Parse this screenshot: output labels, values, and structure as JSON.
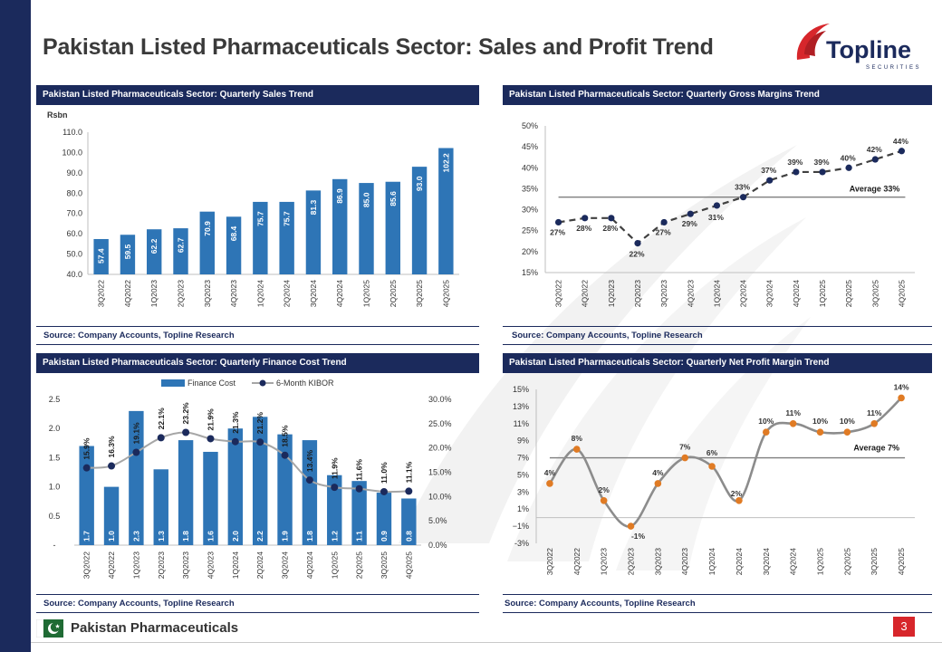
{
  "page": {
    "title": "Pakistan Listed Pharmaceuticals Sector: Sales and Profit Trend",
    "logo": {
      "name": "Topline",
      "tagline": "SECURITIES"
    },
    "footer_label": "Pakistan Pharmaceuticals",
    "page_number": "3"
  },
  "colors": {
    "navy": "#1b2a5c",
    "bar": "#2e75b6",
    "red": "#d7262b",
    "orange": "#e07b24",
    "gray_line": "#7f7f7f",
    "dash_line": "#404040"
  },
  "panels": [
    {
      "id": "sales",
      "header": "Pakistan Listed Pharmaceuticals Sector: Quarterly Sales Trend",
      "source": "Source: Company Accounts, Topline Research"
    },
    {
      "id": "gross",
      "header": "Pakistan Listed Pharmaceuticals Sector: Quarterly Gross Margins Trend",
      "source": "Source: Company Accounts, Topline Research"
    },
    {
      "id": "finance",
      "header": "Pakistan Listed Pharmaceuticals Sector: Quarterly Finance Cost Trend",
      "source": "Source: Company Accounts, Topline Research"
    },
    {
      "id": "netprofit",
      "header": "Pakistan Listed Pharmaceuticals Sector: Quarterly Net Profit Margin Trend",
      "source": "Source: Company Accounts, Topline Research"
    }
  ],
  "chart_data": [
    {
      "type": "bar",
      "categories": [
        "3Q2022",
        "4Q2022",
        "1Q2023",
        "2Q2023",
        "3Q2023",
        "4Q2023",
        "1Q2024",
        "2Q2024",
        "3Q2024",
        "4Q2024",
        "1Q2025",
        "2Q2025",
        "3Q2025",
        "4Q2025"
      ],
      "values": [
        57.4,
        59.5,
        62.2,
        62.7,
        70.9,
        68.4,
        75.7,
        75.7,
        81.3,
        86.9,
        85.0,
        85.6,
        93.0,
        102.2
      ],
      "value_labels": [
        "57.4",
        "59.5",
        "62.2",
        "62.7",
        "70.9",
        "68.4",
        "75.7",
        "75.7",
        "81.3",
        "86.9",
        "85.0",
        "85.6",
        "93.0",
        "102.2"
      ],
      "ylabel": "Rsbn",
      "ylim": [
        40,
        110
      ],
      "yticks": [
        "40.0",
        "50.0",
        "60.0",
        "70.0",
        "80.0",
        "90.0",
        "100.0",
        "110.0"
      ]
    },
    {
      "type": "line",
      "categories": [
        "3Q2022",
        "4Q2022",
        "1Q2023",
        "2Q2023",
        "3Q2023",
        "4Q2023",
        "1Q2024",
        "2Q2024",
        "3Q2024",
        "4Q2024",
        "1Q2025",
        "2Q2025",
        "3Q2025",
        "4Q2025"
      ],
      "values": [
        27,
        28,
        28,
        22,
        27,
        29,
        31,
        33,
        37,
        39,
        39,
        40,
        42,
        44
      ],
      "value_labels": [
        "27%",
        "28%",
        "28%",
        "22%",
        "27%",
        "29%",
        "31%",
        "33%",
        "37%",
        "39%",
        "39%",
        "40%",
        "42%",
        "44%"
      ],
      "average": 33,
      "average_label": "Average 33%",
      "ylim": [
        15,
        50
      ],
      "yticks": [
        "15%",
        "20%",
        "25%",
        "30%",
        "35%",
        "40%",
        "45%",
        "50%"
      ],
      "line_style": "dashed"
    },
    {
      "type": "bar",
      "categories": [
        "3Q2022",
        "4Q2022",
        "1Q2023",
        "2Q2023",
        "3Q2023",
        "4Q2023",
        "1Q2024",
        "2Q2024",
        "3Q2024",
        "4Q2024",
        "1Q2025",
        "2Q2025",
        "3Q2025",
        "4Q2025"
      ],
      "series": [
        {
          "name": "Finance Cost",
          "axis": "left",
          "values": [
            1.7,
            1.0,
            2.3,
            1.3,
            1.8,
            1.6,
            2.0,
            2.2,
            1.9,
            1.8,
            1.2,
            1.1,
            0.9,
            0.8
          ],
          "value_labels": [
            "1.7",
            "1.0",
            "2.3",
            "1.3",
            "1.8",
            "1.6",
            "2.0",
            "2.2",
            "1.9",
            "1.8",
            "1.2",
            "1.1",
            "0.9",
            "0.8"
          ]
        },
        {
          "name": "6-Month KIBOR",
          "axis": "right",
          "values": [
            15.9,
            16.3,
            19.1,
            22.1,
            23.2,
            21.9,
            21.3,
            21.2,
            18.5,
            13.4,
            11.9,
            11.6,
            11.0,
            11.1
          ],
          "value_labels": [
            "15.9%",
            "16.3%",
            "19.1%",
            "22.1%",
            "23.2%",
            "21.9%",
            "21.3%",
            "21.2%",
            "18.5%",
            "13.4%",
            "11.9%",
            "11.6%",
            "11.0%",
            "11.1%"
          ]
        }
      ],
      "ylim": [
        0,
        2.5
      ],
      "yticks": [
        "-",
        "0.5",
        "1.0",
        "1.5",
        "2.0",
        "2.5"
      ],
      "y2lim": [
        0,
        30
      ],
      "y2ticks": [
        "0.0%",
        "5.0%",
        "10.0%",
        "15.0%",
        "20.0%",
        "25.0%",
        "30.0%"
      ],
      "legend": "top"
    },
    {
      "type": "line",
      "categories": [
        "3Q2022",
        "4Q2022",
        "1Q2023",
        "2Q2023",
        "3Q2023",
        "4Q2023",
        "1Q2024",
        "2Q2024",
        "3Q2024",
        "4Q2024",
        "1Q2025",
        "2Q2025",
        "3Q2025",
        "4Q2025"
      ],
      "values": [
        4,
        8,
        2,
        -1,
        4,
        7,
        6,
        2,
        10,
        11,
        10,
        10,
        11,
        14
      ],
      "value_labels": [
        "4%",
        "8%",
        "2%",
        "-1%",
        "4%",
        "7%",
        "6%",
        "2%",
        "10%",
        "11%",
        "10%",
        "10%",
        "11%",
        "14%"
      ],
      "average": 7,
      "average_label": "Average 7%",
      "ylim": [
        -3,
        15
      ],
      "yticks": [
        "-3%",
        "−1%",
        "1%",
        "3%",
        "5%",
        "7%",
        "9%",
        "11%",
        "13%",
        "15%"
      ],
      "line_style": "smooth"
    }
  ]
}
